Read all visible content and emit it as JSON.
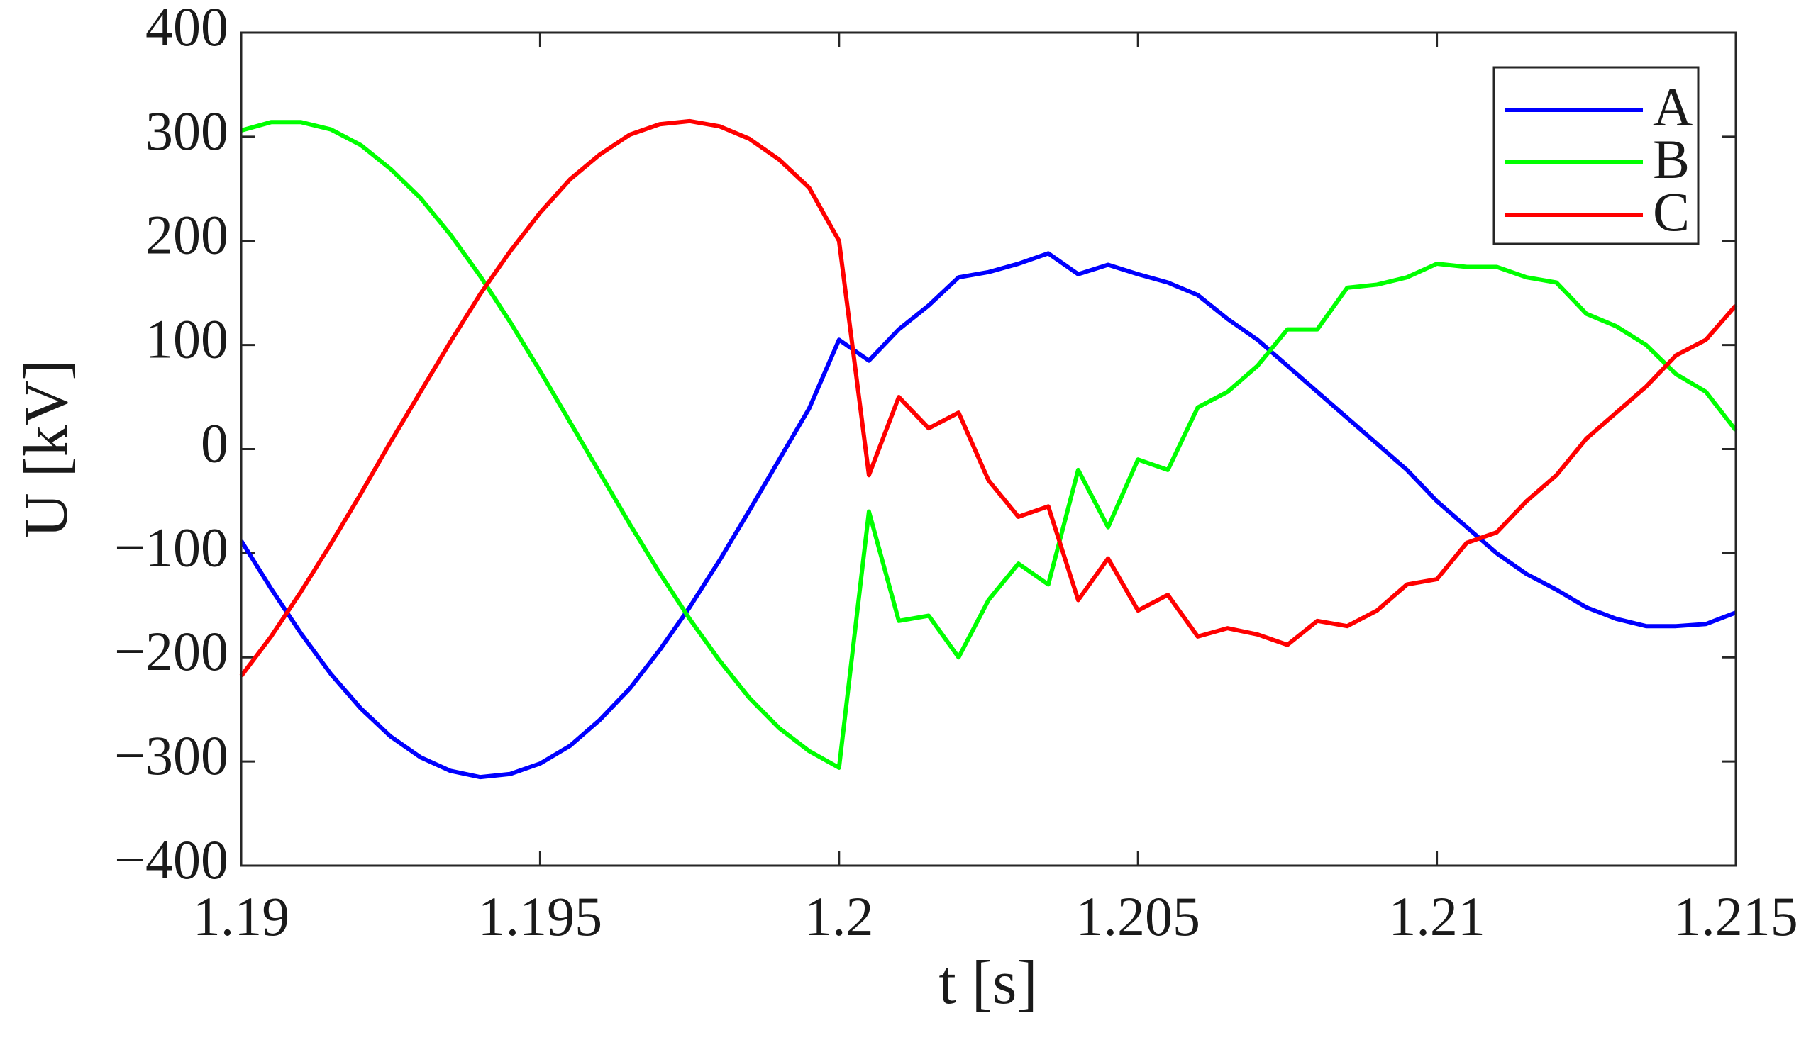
{
  "chart_data": {
    "type": "line",
    "xlabel": "t [s]",
    "ylabel": "U [kV]",
    "x": [
      1.19,
      1.1905,
      1.191,
      1.1915,
      1.192,
      1.1925,
      1.193,
      1.1935,
      1.194,
      1.1945,
      1.195,
      1.1955,
      1.196,
      1.1965,
      1.197,
      1.1975,
      1.198,
      1.1985,
      1.199,
      1.1995,
      1.2,
      1.2005,
      1.201,
      1.2015,
      1.202,
      1.2025,
      1.203,
      1.2035,
      1.204,
      1.2045,
      1.205,
      1.2055,
      1.206,
      1.2065,
      1.207,
      1.2075,
      1.208,
      1.2085,
      1.209,
      1.2095,
      1.21,
      1.2105,
      1.211,
      1.2115,
      1.212,
      1.2125,
      1.213,
      1.2135,
      1.214,
      1.2145,
      1.215
    ],
    "series": [
      {
        "name": "A",
        "color": "#0000ff",
        "values": [
          -88,
          -134,
          -177,
          -216,
          -249,
          -276,
          -296,
          -309,
          -315,
          -312,
          -302,
          -285,
          -260,
          -230,
          -193,
          -152,
          -107,
          -59,
          -10,
          39,
          105,
          85,
          115,
          138,
          165,
          170,
          178,
          188,
          168,
          177,
          168,
          160,
          148,
          125,
          105,
          80,
          55,
          30,
          5,
          -20,
          -50,
          -75,
          -100,
          -120,
          -135,
          -152,
          -163,
          -170,
          -170,
          -168,
          -157
        ]
      },
      {
        "name": "B",
        "color": "#00ff00",
        "values": [
          306,
          314,
          314,
          307,
          292,
          269,
          241,
          206,
          166,
          122,
          75,
          26,
          -23,
          -72,
          -119,
          -163,
          -203,
          -239,
          -268,
          -290,
          -306,
          -60,
          -165,
          -160,
          -200,
          -145,
          -110,
          -130,
          -20,
          -75,
          -10,
          -20,
          40,
          55,
          80,
          115,
          115,
          155,
          158,
          165,
          178,
          175,
          175,
          165,
          160,
          130,
          118,
          100,
          72,
          55,
          18
        ]
      },
      {
        "name": "C",
        "color": "#ff0000",
        "values": [
          -218,
          -180,
          -137,
          -91,
          -43,
          7,
          55,
          103,
          149,
          190,
          227,
          259,
          283,
          302,
          312,
          315,
          310,
          298,
          278,
          251,
          200,
          -25,
          50,
          20,
          35,
          -30,
          -65,
          -55,
          -145,
          -105,
          -155,
          -140,
          -180,
          -172,
          -178,
          -188,
          -165,
          -170,
          -155,
          -130,
          -125,
          -90,
          -80,
          -50,
          -25,
          10,
          35,
          60,
          90,
          105,
          138
        ]
      }
    ],
    "xlim": [
      1.19,
      1.215
    ],
    "xticks": [
      1.19,
      1.195,
      1.2,
      1.205,
      1.21,
      1.215
    ],
    "ylim": [
      -400,
      400
    ],
    "yticks": [
      {
        "value": -400,
        "label": "−400"
      },
      {
        "value": -300,
        "label": "−300"
      },
      {
        "value": -200,
        "label": "−200"
      },
      {
        "value": -100,
        "label": "−100"
      },
      0,
      100,
      200,
      300,
      400
    ],
    "grid": false,
    "legend": "upper right"
  }
}
